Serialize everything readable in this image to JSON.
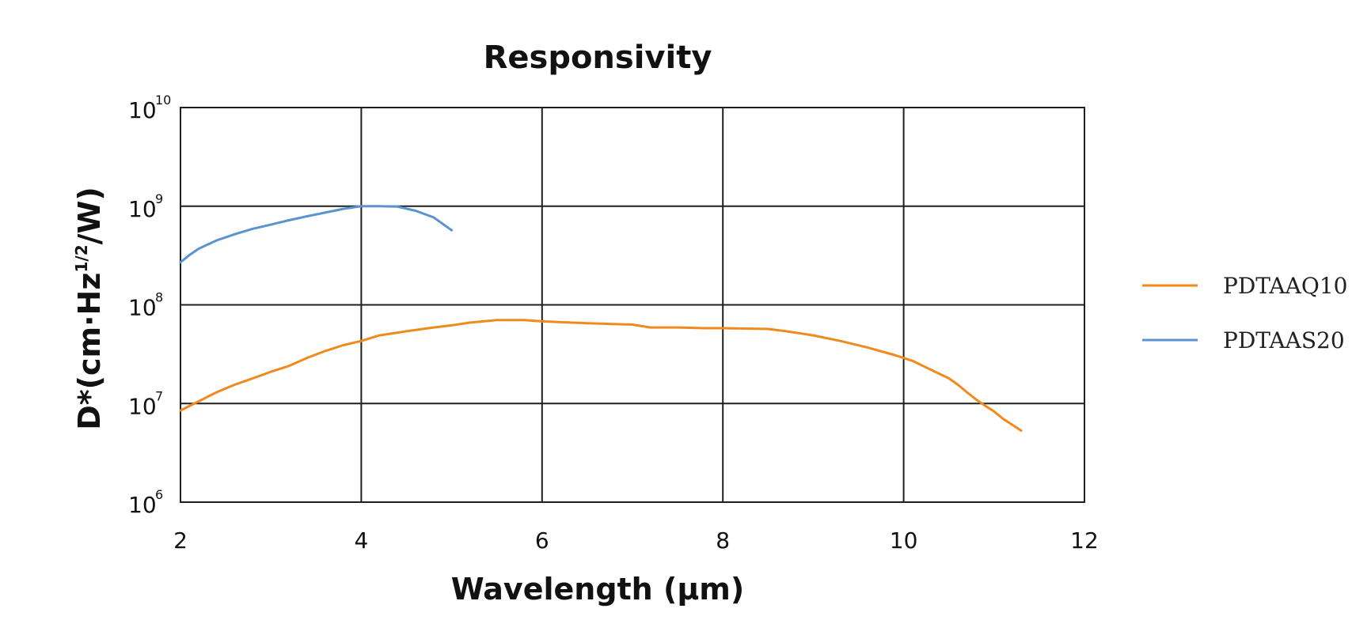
{
  "chart_data": {
    "type": "line",
    "title": "Responsivity",
    "xlabel": "Wavelength (μm)",
    "ylabel": "D*(cm·Hz^1/2/W)",
    "ylabel_parts": {
      "prefix": "D*(cm·Hz",
      "superscript": "1/2",
      "suffix": "/W)"
    },
    "xlim": [
      2,
      12
    ],
    "ylim": [
      1000000,
      10000000000
    ],
    "yscale": "log",
    "x_ticks": [
      2,
      4,
      6,
      8,
      10,
      12
    ],
    "x_tick_labels": [
      "2",
      "4",
      "6",
      "8",
      "10",
      "12"
    ],
    "y_ticks": [
      1000000,
      10000000,
      100000000,
      1000000000,
      10000000000
    ],
    "y_tick_labels": [
      {
        "base": "10",
        "exp": "6"
      },
      {
        "base": "10",
        "exp": "7"
      },
      {
        "base": "10",
        "exp": "8"
      },
      {
        "base": "10",
        "exp": "9"
      },
      {
        "base": "10",
        "exp": "10"
      }
    ],
    "grid": true,
    "legend_position": "right",
    "series": [
      {
        "name": "PDTAAQ10",
        "color": "#f08a1c",
        "x": [
          2.0,
          2.2,
          2.4,
          2.6,
          2.8,
          3.0,
          3.2,
          3.4,
          3.6,
          3.8,
          4.0,
          4.2,
          4.5,
          4.8,
          5.0,
          5.2,
          5.5,
          5.8,
          6.0,
          6.5,
          7.0,
          7.2,
          7.5,
          7.8,
          8.0,
          8.5,
          8.7,
          9.0,
          9.3,
          9.6,
          9.9,
          10.1,
          10.3,
          10.5,
          10.6,
          10.7,
          10.8,
          10.9,
          11.0,
          11.1,
          11.2,
          11.3
        ],
        "y": [
          8500000,
          10500000,
          13000000,
          15500000,
          18000000,
          21000000,
          24000000,
          29000000,
          34000000,
          39000000,
          43000000,
          49000000,
          54000000,
          59000000,
          62000000,
          66000000,
          70000000,
          70000000,
          68000000,
          65000000,
          63000000,
          59000000,
          59000000,
          58000000,
          58000000,
          57000000,
          54000000,
          49000000,
          43000000,
          37000000,
          31000000,
          27000000,
          22000000,
          18000000,
          15500000,
          13000000,
          11000000,
          9500000,
          8300000,
          7000000,
          6100000,
          5300000
        ]
      },
      {
        "name": "PDTAAS20",
        "color": "#5b93d1",
        "x": [
          2.0,
          2.1,
          2.2,
          2.4,
          2.6,
          2.8,
          3.0,
          3.2,
          3.4,
          3.6,
          3.8,
          4.0,
          4.2,
          4.4,
          4.6,
          4.8,
          5.0
        ],
        "y": [
          270000000,
          320000000,
          370000000,
          450000000,
          520000000,
          590000000,
          650000000,
          720000000,
          790000000,
          860000000,
          940000000,
          1000000000,
          1000000000,
          990000000,
          900000000,
          770000000,
          570000000
        ]
      }
    ]
  }
}
